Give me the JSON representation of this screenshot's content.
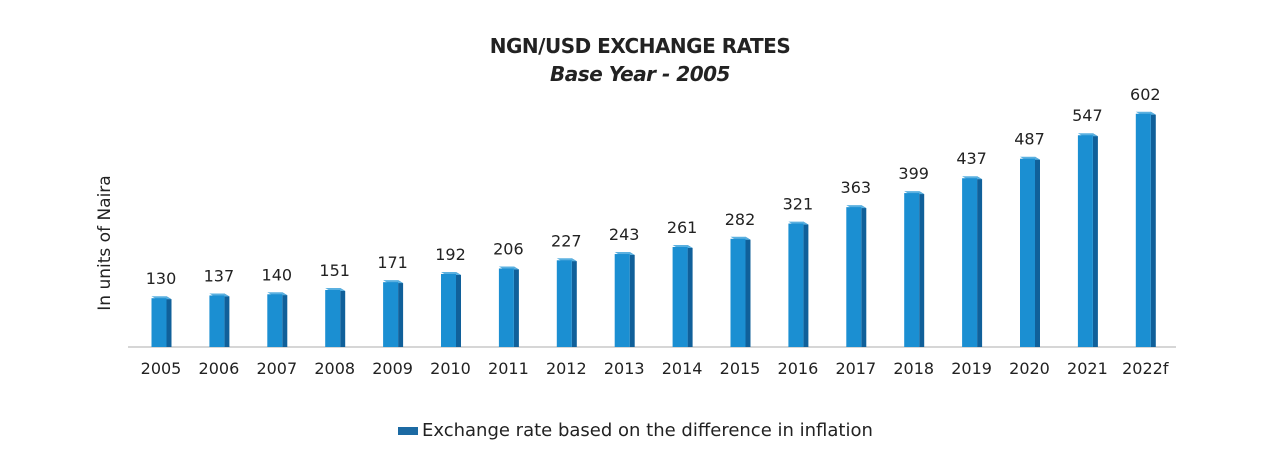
{
  "chart_data": {
    "type": "bar",
    "title": "NGN/USD EXCHANGE RATES",
    "subtitle": "Base Year - 2005",
    "xlabel": "",
    "ylabel": "In units of Naira",
    "categories": [
      "2005",
      "2006",
      "2007",
      "2008",
      "2009",
      "2010",
      "2011",
      "2012",
      "2013",
      "2014",
      "2015",
      "2016",
      "2017",
      "2018",
      "2019",
      "2020",
      "2021",
      "2022f"
    ],
    "series": [
      {
        "name": "Exchange rate based on the difference in inflation",
        "values": [
          130,
          137,
          140,
          151,
          171,
          192,
          206,
          227,
          243,
          261,
          282,
          321,
          363,
          399,
          437,
          487,
          547,
          602
        ]
      }
    ],
    "ylim": [
      0,
      650
    ],
    "grid": false,
    "legend": "bottom",
    "colors": {
      "bar_front": "#1b8fd2",
      "bar_side": "#10609a",
      "bar_top": "#5ab0e0",
      "legend": "#1c6aa3"
    }
  }
}
